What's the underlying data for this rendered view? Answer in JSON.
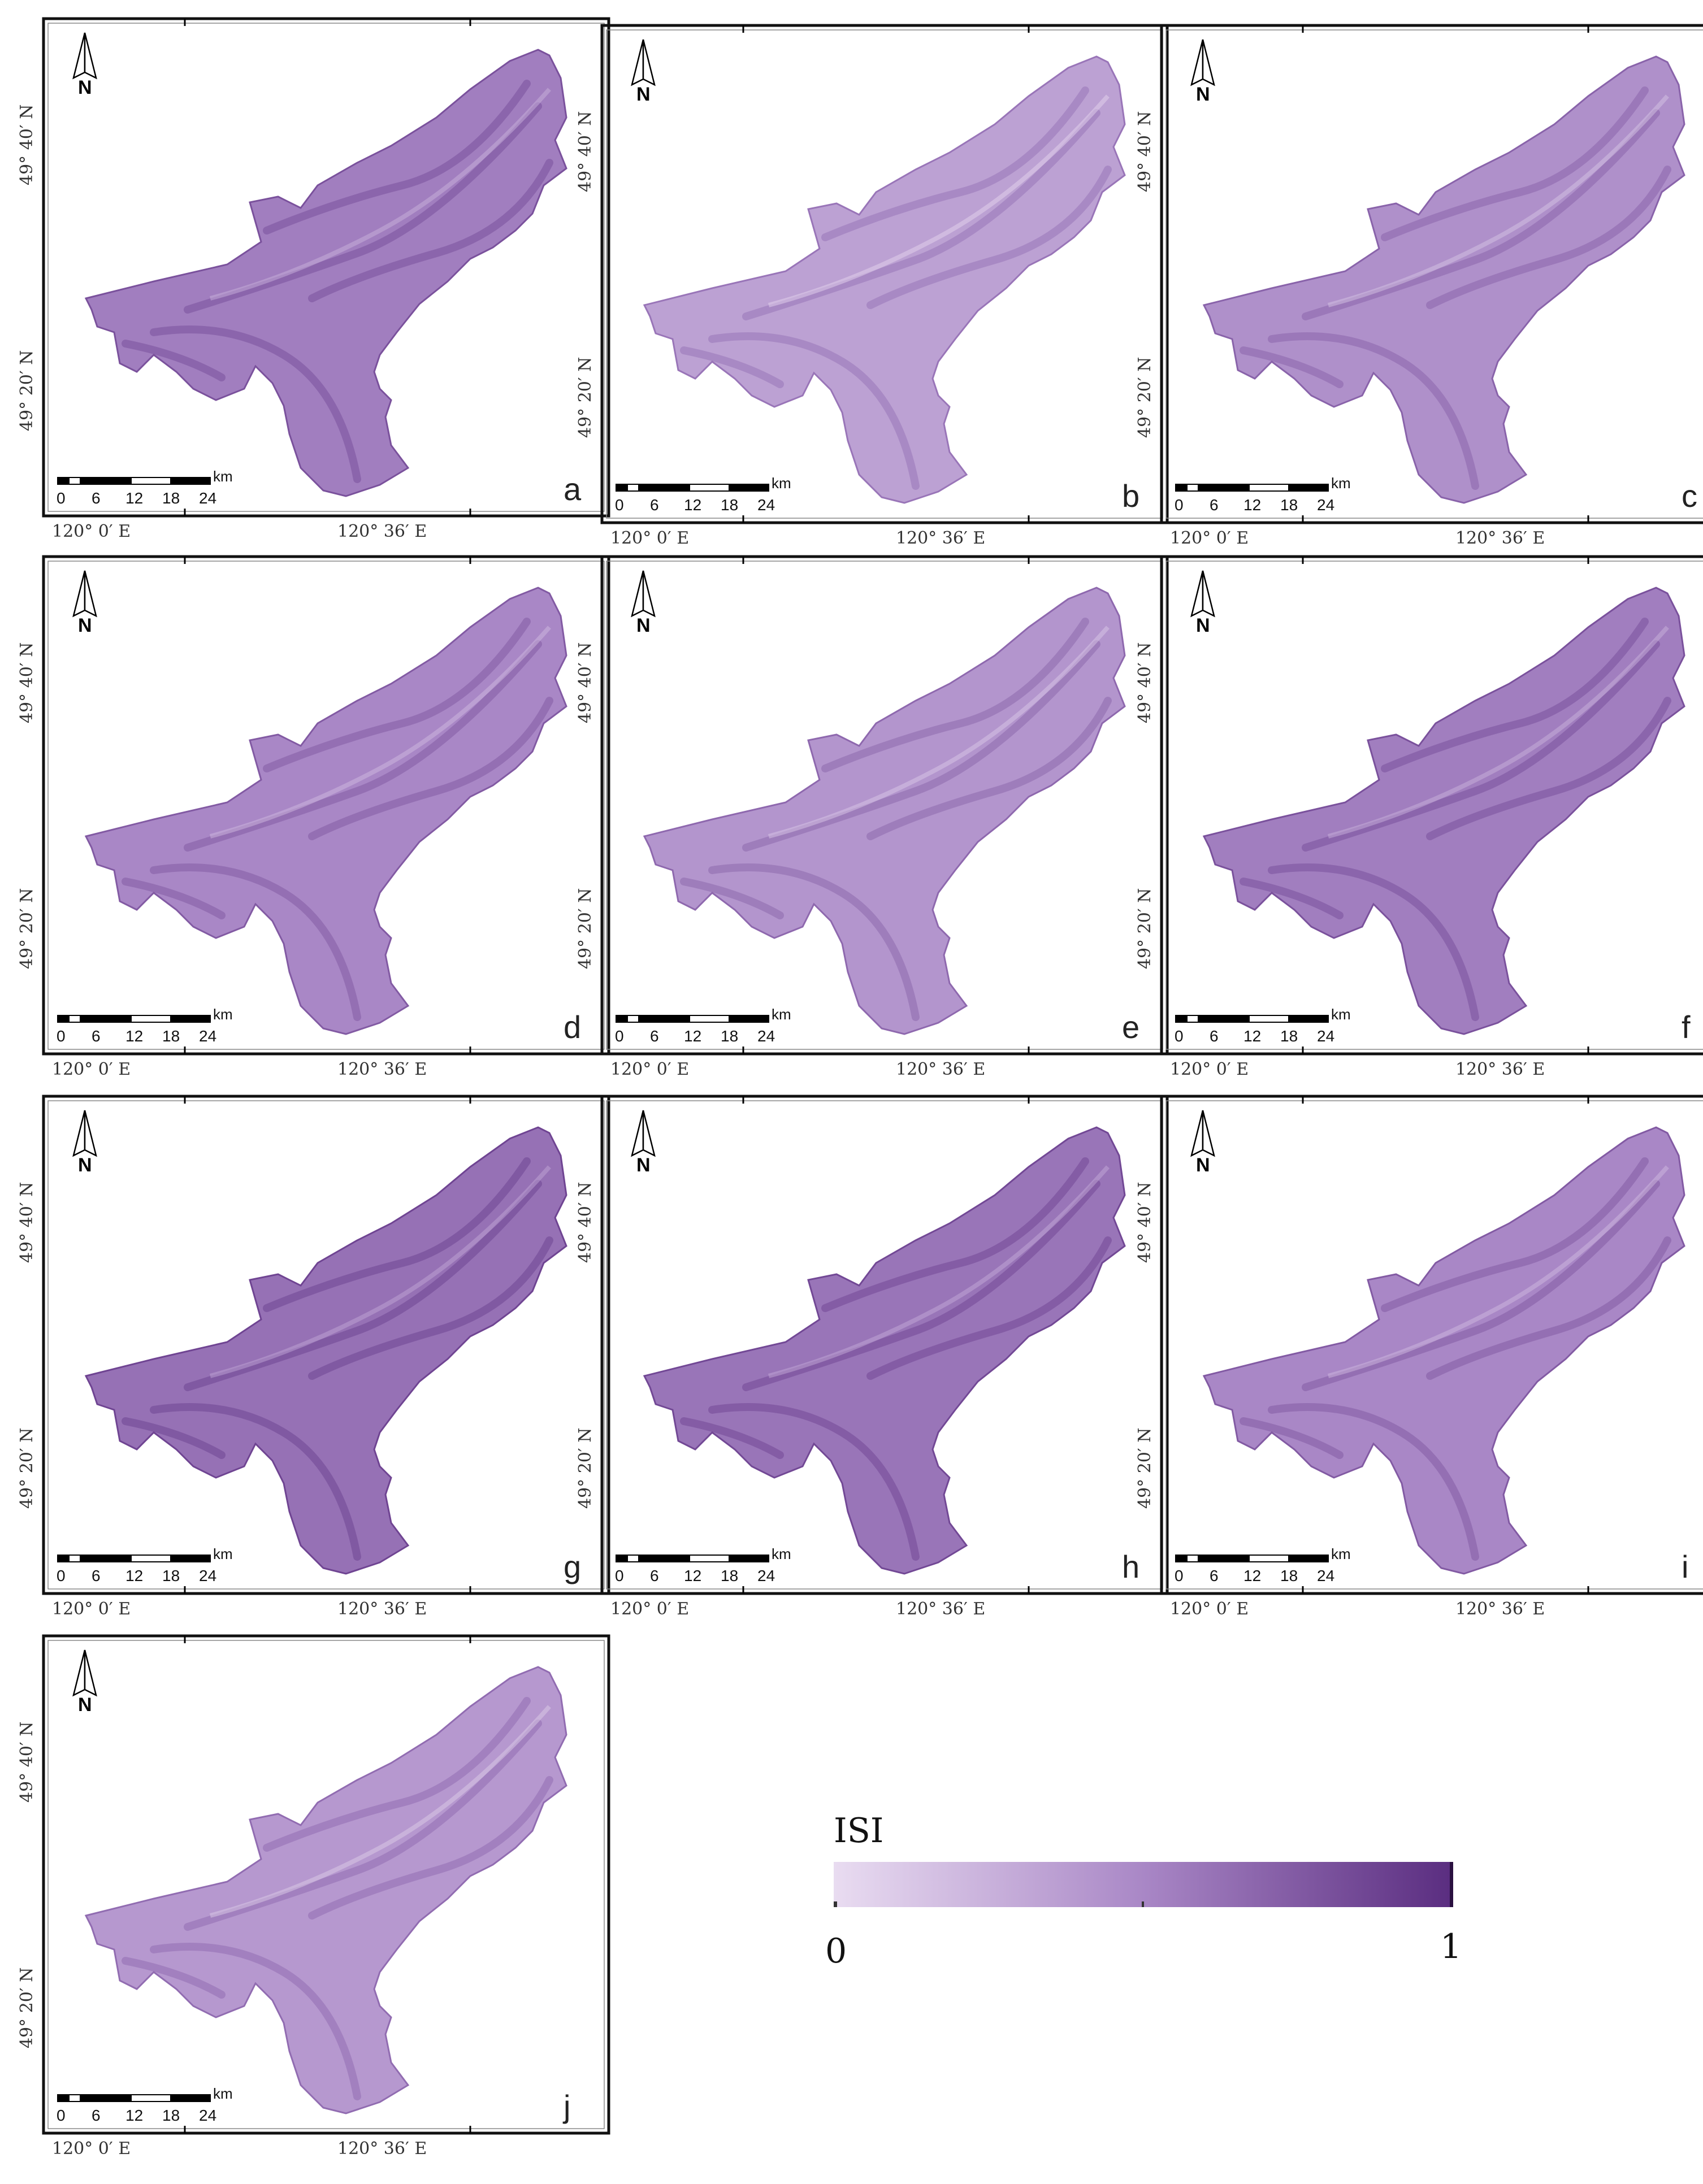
{
  "figure": {
    "colormap": {
      "start": "#e9dcf1",
      "mid": "#a987c6",
      "end": "#5a2d80"
    },
    "land_color": "#b394d0",
    "frame_color": "#111111"
  },
  "legend": {
    "title": "ISI",
    "min_label": "0",
    "max_label": "1"
  },
  "scale": {
    "unit": "km",
    "ticks": [
      "0",
      "6",
      "12",
      "18",
      "24"
    ]
  },
  "axes": {
    "lat_labels": [
      "49° 40′ N",
      "49° 20′ N"
    ],
    "lon_labels": [
      "120° 0′ E",
      "120° 36′ E"
    ]
  },
  "north_arrow": {
    "label": "N"
  },
  "panels": [
    {
      "letter": "a",
      "tone": 0.55
    },
    {
      "letter": "b",
      "tone": 0.35
    },
    {
      "letter": "c",
      "tone": 0.45
    },
    {
      "letter": "d",
      "tone": 0.5
    },
    {
      "letter": "e",
      "tone": 0.42
    },
    {
      "letter": "f",
      "tone": 0.55
    },
    {
      "letter": "g",
      "tone": 0.62
    },
    {
      "letter": "h",
      "tone": 0.6
    },
    {
      "letter": "i",
      "tone": 0.5
    },
    {
      "letter": "j",
      "tone": 0.4
    }
  ]
}
